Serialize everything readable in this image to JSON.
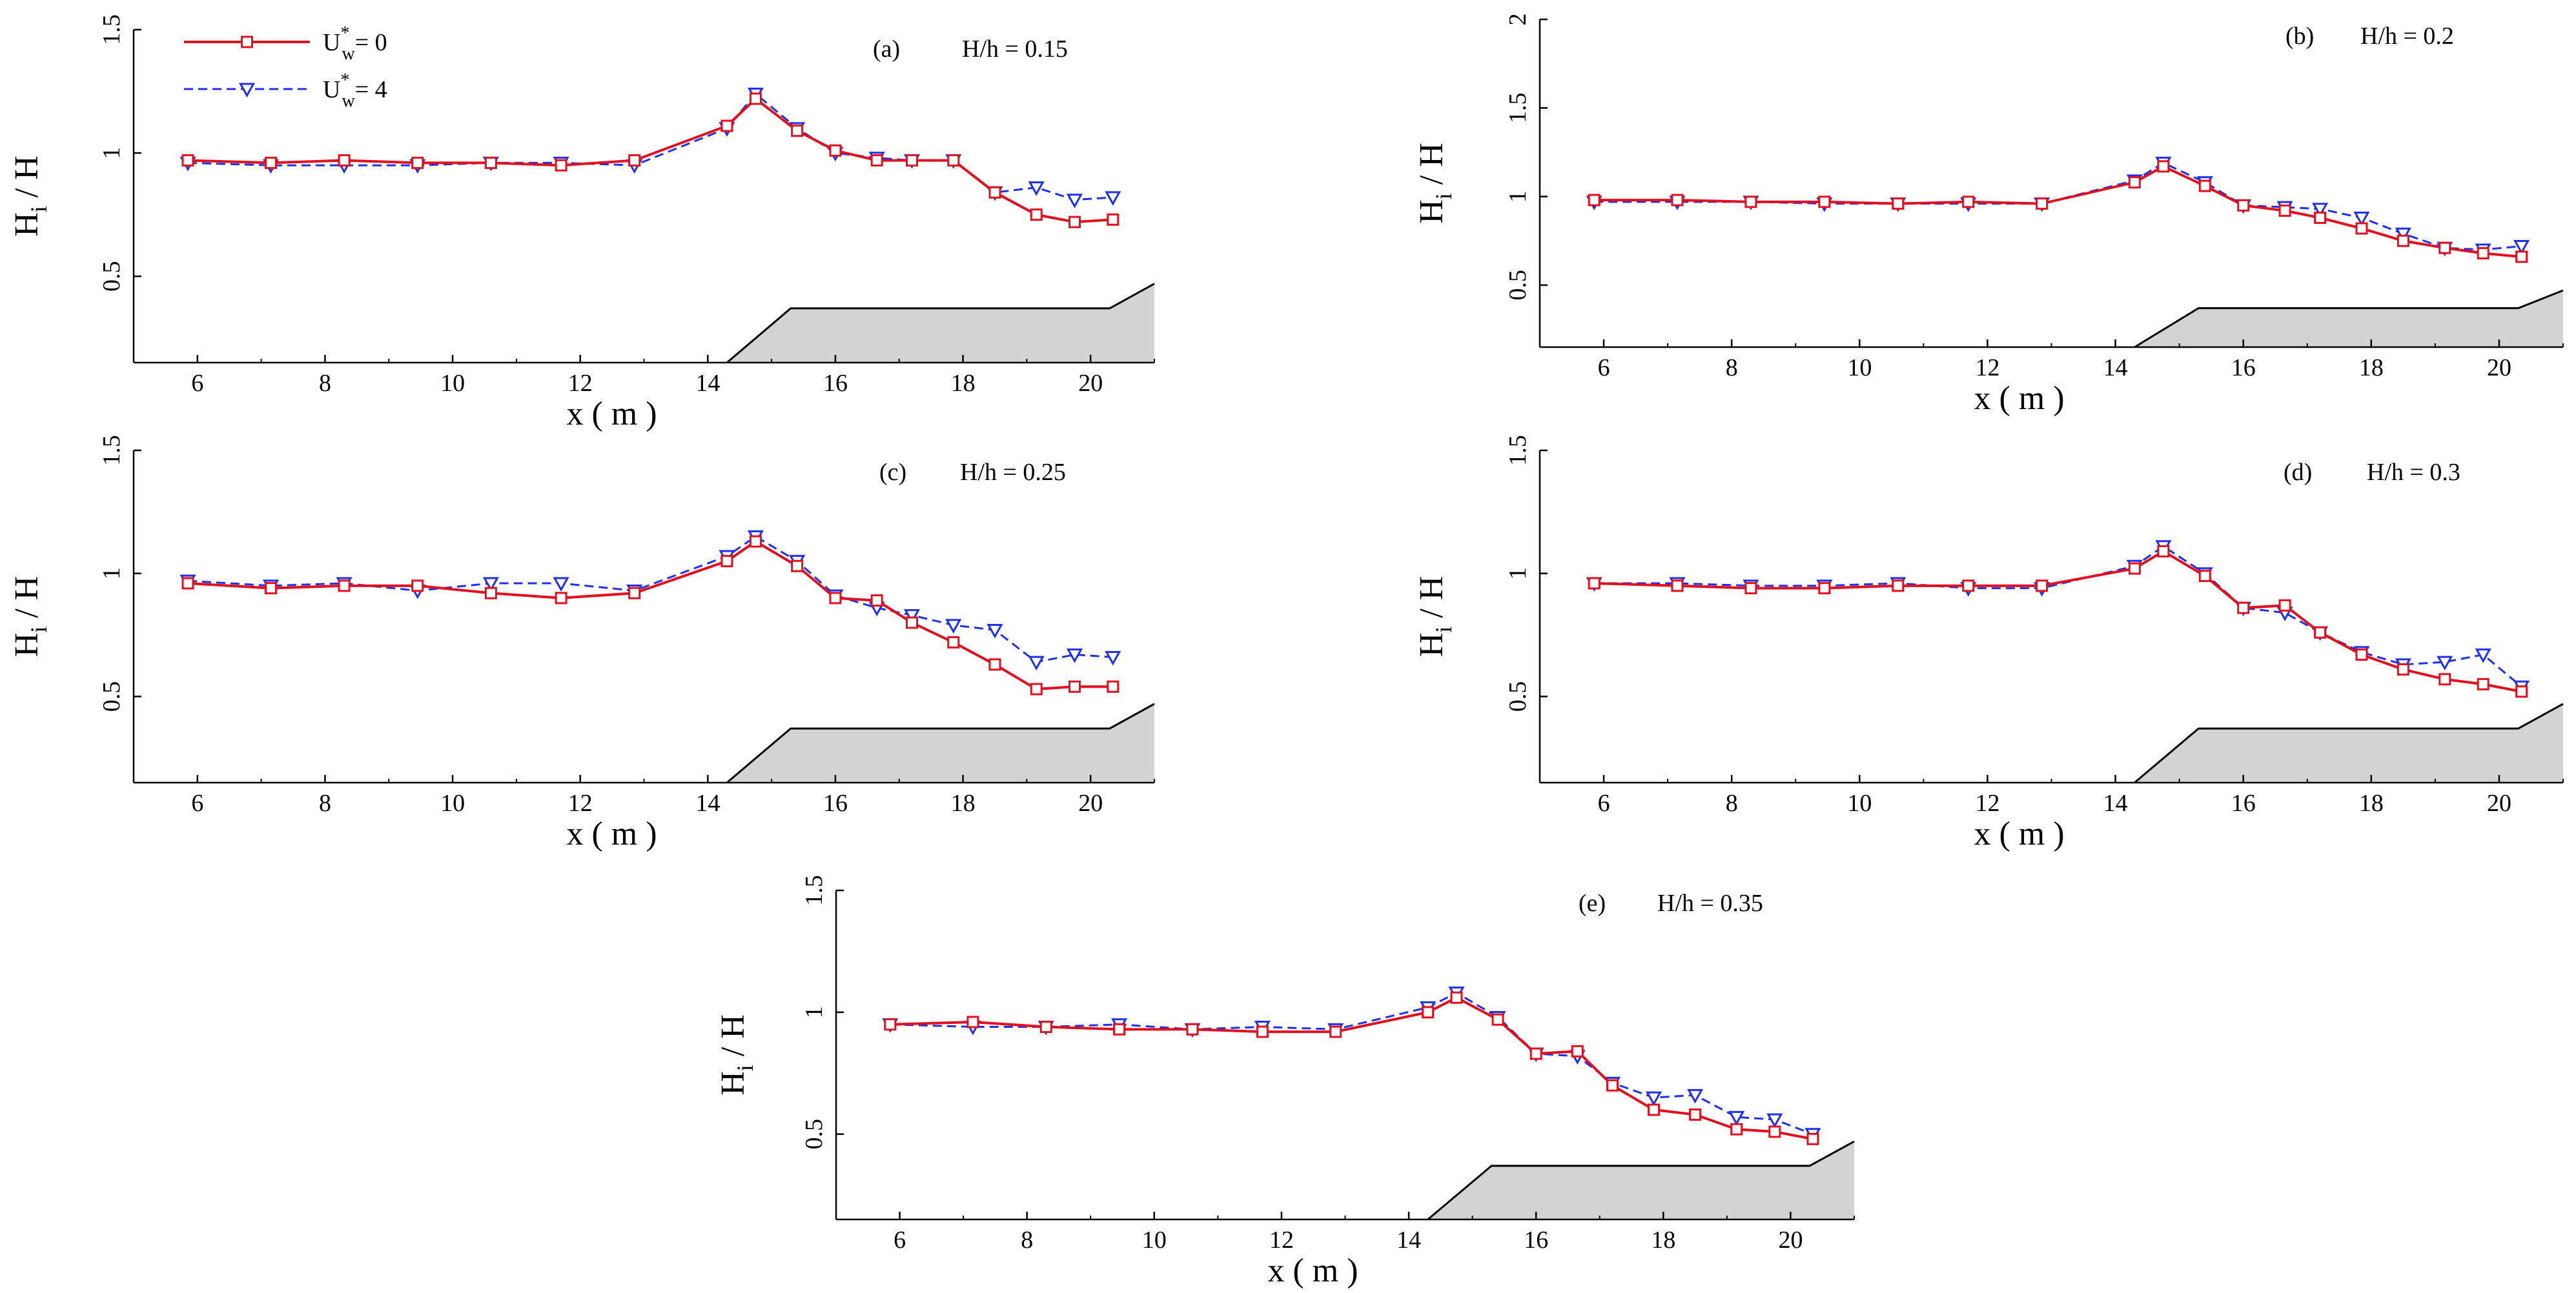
{
  "legend": {
    "series_a": {
      "base": "U",
      "sup": "*",
      "sub": "w",
      "suffix": "= 0"
    },
    "series_b": {
      "base": "U",
      "sup": "*",
      "sub": "w",
      "suffix": "= 4"
    }
  },
  "colors": {
    "series_a": "#e01020",
    "series_b": "#2030e8",
    "bed_fill": "#d3d3d3"
  },
  "chart_data": [
    {
      "type": "line",
      "panel_label": "(a)",
      "annotation": "H/h = 0.15",
      "xlabel": "x ( m )",
      "ylabel": {
        "base": "H",
        "sub": "i",
        "suffix": " / H"
      },
      "xlim": [
        5,
        21
      ],
      "ylim": [
        0.15,
        1.5
      ],
      "xticks": [
        6,
        8,
        10,
        12,
        14,
        16,
        18,
        20
      ],
      "yticks": [
        0.5,
        1,
        1.5
      ],
      "series": [
        {
          "name": "U*w = 0",
          "marker": "square",
          "line": "solid",
          "x": [
            5.85,
            7.15,
            8.3,
            9.45,
            10.6,
            11.7,
            12.85,
            14.3,
            14.75,
            15.4,
            16.0,
            16.65,
            17.2,
            17.85,
            18.5,
            19.15,
            19.75,
            20.35
          ],
          "y": [
            0.97,
            0.96,
            0.97,
            0.96,
            0.96,
            0.95,
            0.97,
            1.11,
            1.22,
            1.09,
            1.01,
            0.97,
            0.97,
            0.97,
            0.84,
            0.75,
            0.72,
            0.73
          ]
        },
        {
          "name": "U*w = 4",
          "marker": "triangle-down",
          "line": "dashed",
          "x": [
            5.85,
            7.15,
            8.3,
            9.45,
            10.6,
            11.7,
            12.85,
            14.3,
            14.75,
            15.4,
            16.0,
            16.65,
            17.2,
            17.85,
            18.5,
            19.15,
            19.75,
            20.35
          ],
          "y": [
            0.96,
            0.95,
            0.95,
            0.95,
            0.96,
            0.96,
            0.95,
            1.1,
            1.24,
            1.1,
            1.0,
            0.98,
            0.97,
            0.97,
            0.84,
            0.86,
            0.81,
            0.82
          ]
        }
      ]
    },
    {
      "type": "line",
      "panel_label": "(b)",
      "annotation": "H/h = 0.2",
      "xlabel": "x ( m )",
      "ylabel": {
        "base": "H",
        "sub": "i",
        "suffix": " / H"
      },
      "xlim": [
        5,
        21
      ],
      "ylim": [
        0.15,
        2.0
      ],
      "xticks": [
        6,
        8,
        10,
        12,
        14,
        16,
        18,
        20
      ],
      "yticks": [
        0.5,
        1,
        1.5,
        2
      ],
      "series": [
        {
          "name": "U*w = 0",
          "marker": "square",
          "line": "solid",
          "x": [
            5.85,
            7.15,
            8.3,
            9.45,
            10.6,
            11.7,
            12.85,
            14.3,
            14.75,
            15.4,
            16.0,
            16.65,
            17.2,
            17.85,
            18.5,
            19.15,
            19.75,
            20.35
          ],
          "y": [
            0.98,
            0.98,
            0.97,
            0.97,
            0.96,
            0.97,
            0.96,
            1.08,
            1.17,
            1.06,
            0.95,
            0.92,
            0.88,
            0.82,
            0.75,
            0.71,
            0.68,
            0.66
          ]
        },
        {
          "name": "U*w = 4",
          "marker": "triangle-down",
          "line": "dashed",
          "x": [
            5.85,
            7.15,
            8.3,
            9.45,
            10.6,
            11.7,
            12.85,
            14.3,
            14.75,
            15.4,
            16.0,
            16.65,
            17.2,
            17.85,
            18.5,
            19.15,
            19.75,
            20.35
          ],
          "y": [
            0.97,
            0.97,
            0.97,
            0.96,
            0.96,
            0.96,
            0.96,
            1.09,
            1.19,
            1.08,
            0.95,
            0.94,
            0.93,
            0.88,
            0.79,
            0.71,
            0.7,
            0.72
          ]
        }
      ]
    },
    {
      "type": "line",
      "panel_label": "(c)",
      "annotation": "H/h = 0.25",
      "xlabel": "x ( m )",
      "ylabel": {
        "base": "H",
        "sub": "i",
        "suffix": " / H"
      },
      "xlim": [
        5,
        21
      ],
      "ylim": [
        0.15,
        1.5
      ],
      "xticks": [
        6,
        8,
        10,
        12,
        14,
        16,
        18,
        20
      ],
      "yticks": [
        0.5,
        1,
        1.5
      ],
      "series": [
        {
          "name": "U*w = 0",
          "marker": "square",
          "line": "solid",
          "x": [
            5.85,
            7.15,
            8.3,
            9.45,
            10.6,
            11.7,
            12.85,
            14.3,
            14.75,
            15.4,
            16.0,
            16.65,
            17.2,
            17.85,
            18.5,
            19.15,
            19.75,
            20.35
          ],
          "y": [
            0.96,
            0.94,
            0.95,
            0.95,
            0.92,
            0.9,
            0.92,
            1.05,
            1.13,
            1.03,
            0.9,
            0.89,
            0.8,
            0.72,
            0.63,
            0.53,
            0.54,
            0.54
          ]
        },
        {
          "name": "U*w = 4",
          "marker": "triangle-down",
          "line": "dashed",
          "x": [
            5.85,
            7.15,
            8.3,
            9.45,
            10.6,
            11.7,
            12.85,
            14.3,
            14.75,
            15.4,
            16.0,
            16.65,
            17.2,
            17.85,
            18.5,
            19.15,
            19.75,
            20.35
          ],
          "y": [
            0.97,
            0.95,
            0.96,
            0.93,
            0.96,
            0.96,
            0.93,
            1.07,
            1.15,
            1.05,
            0.91,
            0.86,
            0.83,
            0.79,
            0.77,
            0.64,
            0.67,
            0.66
          ]
        }
      ]
    },
    {
      "type": "line",
      "panel_label": "(d)",
      "annotation": "H/h = 0.3",
      "xlabel": "x ( m )",
      "ylabel": {
        "base": "H",
        "sub": "i",
        "suffix": " / H"
      },
      "xlim": [
        5,
        21
      ],
      "ylim": [
        0.15,
        1.5
      ],
      "xticks": [
        6,
        8,
        10,
        12,
        14,
        16,
        18,
        20
      ],
      "yticks": [
        0.5,
        1,
        1.5
      ],
      "series": [
        {
          "name": "U*w = 0",
          "marker": "square",
          "line": "solid",
          "x": [
            5.85,
            7.15,
            8.3,
            9.45,
            10.6,
            11.7,
            12.85,
            14.3,
            14.75,
            15.4,
            16.0,
            16.65,
            17.2,
            17.85,
            18.5,
            19.15,
            19.75,
            20.35
          ],
          "y": [
            0.96,
            0.95,
            0.94,
            0.94,
            0.95,
            0.95,
            0.95,
            1.02,
            1.09,
            0.99,
            0.86,
            0.87,
            0.76,
            0.67,
            0.61,
            0.57,
            0.55,
            0.52
          ]
        },
        {
          "name": "U*w = 4",
          "marker": "triangle-down",
          "line": "dashed",
          "x": [
            5.85,
            7.15,
            8.3,
            9.45,
            10.6,
            11.7,
            12.85,
            14.3,
            14.75,
            15.4,
            16.0,
            16.65,
            17.2,
            17.85,
            18.5,
            19.15,
            19.75,
            20.35
          ],
          "y": [
            0.96,
            0.96,
            0.95,
            0.95,
            0.96,
            0.94,
            0.94,
            1.03,
            1.11,
            1.0,
            0.86,
            0.84,
            0.76,
            0.68,
            0.63,
            0.64,
            0.67,
            0.54
          ]
        }
      ]
    },
    {
      "type": "line",
      "panel_label": "(e)",
      "annotation": "H/h = 0.35",
      "xlabel": "x ( m )",
      "ylabel": {
        "base": "H",
        "sub": "i",
        "suffix": " / H"
      },
      "xlim": [
        5,
        21
      ],
      "ylim": [
        0.15,
        1.5
      ],
      "xticks": [
        6,
        8,
        10,
        12,
        14,
        16,
        18,
        20
      ],
      "yticks": [
        0.5,
        1,
        1.5
      ],
      "series": [
        {
          "name": "U*w = 0",
          "marker": "square",
          "line": "solid",
          "x": [
            5.85,
            7.15,
            8.3,
            9.45,
            10.6,
            11.7,
            12.85,
            14.3,
            14.75,
            15.4,
            16.0,
            16.65,
            17.2,
            17.85,
            18.5,
            19.15,
            19.75,
            20.35
          ],
          "y": [
            0.95,
            0.96,
            0.94,
            0.93,
            0.93,
            0.92,
            0.92,
            1.0,
            1.06,
            0.97,
            0.83,
            0.84,
            0.7,
            0.6,
            0.58,
            0.52,
            0.51,
            0.48
          ]
        },
        {
          "name": "U*w = 4",
          "marker": "triangle-down",
          "line": "dashed",
          "x": [
            5.85,
            7.15,
            8.3,
            9.45,
            10.6,
            11.7,
            12.85,
            14.3,
            14.75,
            15.4,
            16.0,
            16.65,
            17.2,
            17.85,
            18.5,
            19.15,
            19.75,
            20.35
          ],
          "y": [
            0.95,
            0.94,
            0.94,
            0.95,
            0.93,
            0.94,
            0.93,
            1.02,
            1.08,
            0.98,
            0.83,
            0.82,
            0.71,
            0.65,
            0.66,
            0.57,
            0.56,
            0.5
          ]
        }
      ]
    }
  ]
}
